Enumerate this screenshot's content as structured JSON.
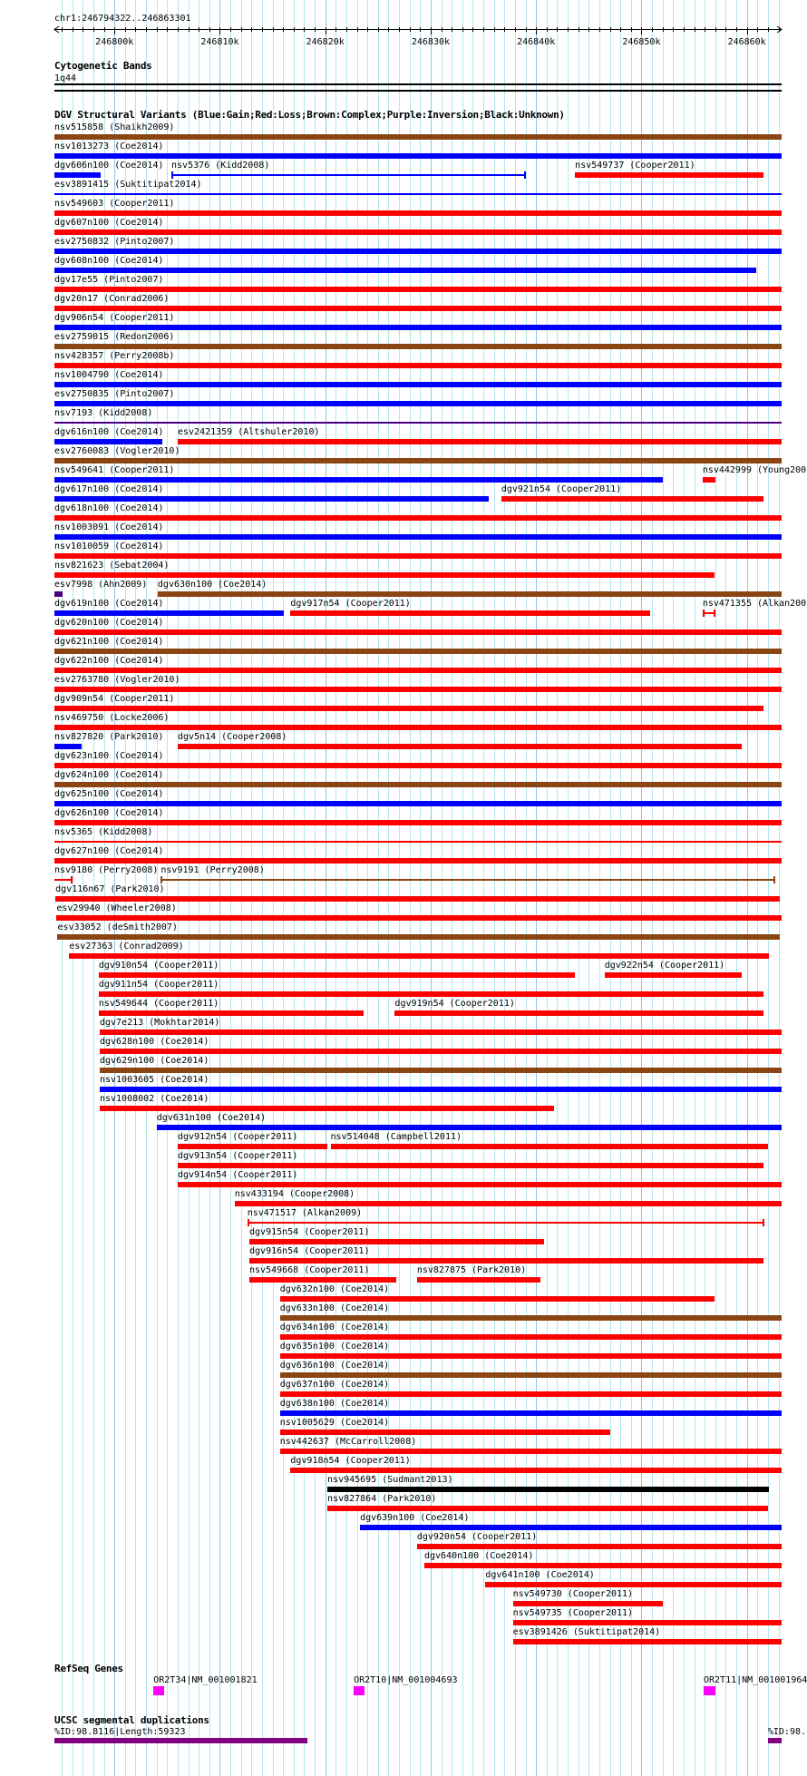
{
  "location": "chr1:246794322..246863301",
  "view": {
    "start_kb": 246794.3,
    "end_kb": 246863.3
  },
  "ruler": {
    "ticks": [
      {
        "kb": 246800,
        "label": "246800k"
      },
      {
        "kb": 246810,
        "label": "246810k"
      },
      {
        "kb": 246820,
        "label": "246820k"
      },
      {
        "kb": 246830,
        "label": "246830k"
      },
      {
        "kb": 246840,
        "label": "246840k"
      },
      {
        "kb": 246850,
        "label": "246850k"
      },
      {
        "kb": 246860,
        "label": "246860k"
      }
    ]
  },
  "cytoband": {
    "title": "Cytogenetic Bands",
    "band": "1q44"
  },
  "colors": {
    "G": "#0000ff",
    "L": "#ff0000",
    "C": "#8b4513",
    "I": "#4b0082",
    "U": "#000000",
    "gene": "#ff00ff",
    "segdup": "#800080",
    "grid_minor": "#b4e6f0",
    "grid_major": "#8cc6e8"
  },
  "dgv": {
    "title": "DGV Structural Variants (Blue:Gain;Red:Loss;Brown:Complex;Purple:Inversion;Black:Unknown)",
    "rows": [
      [
        {
          "l": "nsv515858 (Shaikh2009)",
          "t": "C",
          "s": 246794.3,
          "e": 246863.3
        }
      ],
      [
        {
          "l": "nsv1013273 (Coe2014)",
          "t": "G",
          "s": 246794.3,
          "e": 246863.3
        }
      ],
      [
        {
          "l": "dgv606n100 (Coe2014)",
          "t": "G",
          "s": 246794.3,
          "e": 246798.7
        },
        {
          "l": "nsv5376 (Kidd2008)",
          "t": "G",
          "s": 246805.4,
          "e": 246839.0,
          "line": true
        },
        {
          "l": "nsv549737 (Cooper2011)",
          "t": "L",
          "s": 246843.7,
          "e": 246861.6
        }
      ],
      [
        {
          "l": "esv3891415 (Suktitipat2014)",
          "t": "G",
          "s": 246794.3,
          "e": 246863.3,
          "line": true
        }
      ],
      [
        {
          "l": "nsv549603 (Cooper2011)",
          "t": "L",
          "s": 246794.3,
          "e": 246863.3
        }
      ],
      [
        {
          "l": "dgv607n100 (Coe2014)",
          "t": "L",
          "s": 246794.3,
          "e": 246863.3
        }
      ],
      [
        {
          "l": "esv2750832 (Pinto2007)",
          "t": "G",
          "s": 246794.3,
          "e": 246863.3
        }
      ],
      [
        {
          "l": "dgv608n100 (Coe2014)",
          "t": "G",
          "s": 246794.3,
          "e": 246860.9
        }
      ],
      [
        {
          "l": "dgv17e55 (Pinto2007)",
          "t": "L",
          "s": 246794.3,
          "e": 246863.3
        }
      ],
      [
        {
          "l": "dgv20n17 (Conrad2006)",
          "t": "L",
          "s": 246794.3,
          "e": 246863.3
        }
      ],
      [
        {
          "l": "dgv906n54 (Cooper2011)",
          "t": "G",
          "s": 246794.3,
          "e": 246863.3
        }
      ],
      [
        {
          "l": "esv2759015 (Redon2006)",
          "t": "C",
          "s": 246794.3,
          "e": 246863.3
        }
      ],
      [
        {
          "l": "nsv428357 (Perry2008b)",
          "t": "L",
          "s": 246794.3,
          "e": 246863.3
        }
      ],
      [
        {
          "l": "nsv1004790 (Coe2014)",
          "t": "G",
          "s": 246794.3,
          "e": 246863.3
        }
      ],
      [
        {
          "l": "esv2750835 (Pinto2007)",
          "t": "G",
          "s": 246794.3,
          "e": 246863.3
        }
      ],
      [
        {
          "l": "nsv7193 (Kidd2008)",
          "t": "I",
          "s": 246794.3,
          "e": 246863.3,
          "line": true
        }
      ],
      [
        {
          "l": "dgv616n100 (Coe2014)",
          "t": "G",
          "s": 246794.3,
          "e": 246804.5
        },
        {
          "l": "esv2421359 (Altshuler2010)",
          "t": "L",
          "s": 246806.0,
          "e": 246863.3
        }
      ],
      [
        {
          "l": "esv2760083 (Vogler2010)",
          "t": "C",
          "s": 246794.3,
          "e": 246863.3
        }
      ],
      [
        {
          "l": "nsv549641 (Cooper2011)",
          "t": "G",
          "s": 246794.3,
          "e": 246852.0
        },
        {
          "l": "nsv442999 (Young200",
          "t": "L",
          "s": 246855.8,
          "e": 246857.0
        }
      ],
      [
        {
          "l": "dgv617n100 (Coe2014)",
          "t": "G",
          "s": 246794.3,
          "e": 246835.5
        },
        {
          "l": "dgv921n54 (Cooper2011)",
          "t": "L",
          "s": 246836.7,
          "e": 246861.6
        }
      ],
      [
        {
          "l": "dgv618n100 (Coe2014)",
          "t": "L",
          "s": 246794.3,
          "e": 246863.3
        }
      ],
      [
        {
          "l": "nsv1003091 (Coe2014)",
          "t": "G",
          "s": 246794.3,
          "e": 246863.3
        }
      ],
      [
        {
          "l": "nsv1010059 (Coe2014)",
          "t": "L",
          "s": 246794.3,
          "e": 246863.3
        }
      ],
      [
        {
          "l": "nsv821623 (Sebat2004)",
          "t": "L",
          "s": 246794.3,
          "e": 246856.9
        }
      ],
      [
        {
          "l": "esv7998 (Ahn2009)",
          "t": "I",
          "s": 246794.3,
          "e": 246795.1
        },
        {
          "l": "dgv630n100 (Coe2014)",
          "t": "C",
          "s": 246804.1,
          "e": 246863.3
        }
      ],
      [
        {
          "l": "dgv619n100 (Coe2014)",
          "t": "G",
          "s": 246794.3,
          "e": 246816.1
        },
        {
          "l": "dgv917n54 (Cooper2011)",
          "t": "L",
          "s": 246816.7,
          "e": 246850.8
        },
        {
          "l": "nsv471355 (Alkan200",
          "t": "L",
          "s": 246855.8,
          "e": 246857.0,
          "line": true
        }
      ],
      [
        {
          "l": "dgv620n100 (Coe2014)",
          "t": "L",
          "s": 246794.3,
          "e": 246863.3
        }
      ],
      [
        {
          "l": "dgv621n100 (Coe2014)",
          "t": "C",
          "s": 246794.3,
          "e": 246863.3
        }
      ],
      [
        {
          "l": "dgv622n100 (Coe2014)",
          "t": "L",
          "s": 246794.3,
          "e": 246863.3
        }
      ],
      [
        {
          "l": "esv2763780 (Vogler2010)",
          "t": "L",
          "s": 246794.3,
          "e": 246863.3
        }
      ],
      [
        {
          "l": "dgv909n54 (Cooper2011)",
          "t": "L",
          "s": 246794.3,
          "e": 246861.6
        }
      ],
      [
        {
          "l": "nsv469750 (Locke2006)",
          "t": "L",
          "s": 246794.3,
          "e": 246863.3
        }
      ],
      [
        {
          "l": "nsv827820 (Park2010)",
          "t": "G",
          "s": 246794.3,
          "e": 246796.9
        },
        {
          "l": "dgv5n14 (Cooper2008)",
          "t": "L",
          "s": 246806.0,
          "e": 246859.5
        }
      ],
      [
        {
          "l": "dgv623n100 (Coe2014)",
          "t": "L",
          "s": 246794.3,
          "e": 246863.3
        }
      ],
      [
        {
          "l": "dgv624n100 (Coe2014)",
          "t": "C",
          "s": 246794.3,
          "e": 246863.3
        }
      ],
      [
        {
          "l": "dgv625n100 (Coe2014)",
          "t": "G",
          "s": 246794.3,
          "e": 246863.3
        }
      ],
      [
        {
          "l": "dgv626n100 (Coe2014)",
          "t": "L",
          "s": 246794.3,
          "e": 246863.3
        }
      ],
      [
        {
          "l": "nsv5365 (Kidd2008)",
          "t": "L",
          "s": 246794.3,
          "e": 246863.3,
          "line": true
        }
      ],
      [
        {
          "l": "dgv627n100 (Coe2014)",
          "t": "L",
          "s": 246794.3,
          "e": 246863.3
        }
      ],
      [
        {
          "l": "nsv9180 (Perry2008)",
          "t": "L",
          "s": 246794.3,
          "e": 246796.0,
          "line": true
        },
        {
          "l": "nsv9191 (Perry2008)",
          "t": "C",
          "s": 246804.4,
          "e": 246862.7,
          "line": true
        }
      ],
      [
        {
          "l": "dgv116n67 (Park2010)",
          "t": "L",
          "s": 246794.4,
          "e": 246863.1
        }
      ],
      [
        {
          "l": "esv29940 (Wheeler2008)",
          "t": "L",
          "s": 246794.5,
          "e": 246863.3
        }
      ],
      [
        {
          "l": "esv33052 (deSmith2007)",
          "t": "C",
          "s": 246794.6,
          "e": 246863.1
        }
      ],
      [
        {
          "l": "esv27363 (Conrad2009)",
          "t": "L",
          "s": 246795.7,
          "e": 246862.1
        }
      ],
      [
        {
          "l": "dgv910n54 (Cooper2011)",
          "t": "L",
          "s": 246798.5,
          "e": 246843.7
        },
        {
          "l": "dgv922n54 (Cooper2011)",
          "t": "L",
          "s": 246846.5,
          "e": 246859.5
        }
      ],
      [
        {
          "l": "dgv911n54 (Cooper2011)",
          "t": "L",
          "s": 246798.5,
          "e": 246861.6
        }
      ],
      [
        {
          "l": "nsv549644 (Cooper2011)",
          "t": "L",
          "s": 246798.5,
          "e": 246823.6
        },
        {
          "l": "dgv919n54 (Cooper2011)",
          "t": "L",
          "s": 246826.6,
          "e": 246861.6
        }
      ],
      [
        {
          "l": "dgv7e213 (Mokhtar2014)",
          "t": "L",
          "s": 246798.6,
          "e": 246863.3
        }
      ],
      [
        {
          "l": "dgv628n100 (Coe2014)",
          "t": "L",
          "s": 246798.6,
          "e": 246863.3
        }
      ],
      [
        {
          "l": "dgv629n100 (Coe2014)",
          "t": "C",
          "s": 246798.6,
          "e": 246863.3
        }
      ],
      [
        {
          "l": "nsv1003605 (Coe2014)",
          "t": "G",
          "s": 246798.6,
          "e": 246863.3
        }
      ],
      [
        {
          "l": "nsv1008002 (Coe2014)",
          "t": "L",
          "s": 246798.6,
          "e": 246841.7
        }
      ],
      [
        {
          "l": "dgv631n100 (Coe2014)",
          "t": "G",
          "s": 246804.0,
          "e": 246863.3
        }
      ],
      [
        {
          "l": "dgv912n54 (Cooper2011)",
          "t": "L",
          "s": 246806.0,
          "e": 246820.2
        },
        {
          "l": "nsv514048 (Campbell2011)",
          "t": "L",
          "s": 246820.5,
          "e": 246862.0
        }
      ],
      [
        {
          "l": "dgv913n54 (Cooper2011)",
          "t": "L",
          "s": 246806.0,
          "e": 246861.6
        }
      ],
      [
        {
          "l": "dgv914n54 (Cooper2011)",
          "t": "L",
          "s": 246806.0,
          "e": 246863.3
        }
      ],
      [
        {
          "l": "nsv433194 (Cooper2008)",
          "t": "L",
          "s": 246811.4,
          "e": 246863.3
        }
      ],
      [
        {
          "l": "nsv471517 (Alkan2009)",
          "t": "L",
          "s": 246812.6,
          "e": 246861.7,
          "line": true
        }
      ],
      [
        {
          "l": "dgv915n54 (Cooper2011)",
          "t": "L",
          "s": 246812.8,
          "e": 246840.8
        }
      ],
      [
        {
          "l": "dgv916n54 (Cooper2011)",
          "t": "L",
          "s": 246812.8,
          "e": 246861.6
        }
      ],
      [
        {
          "l": "nsv549668 (Cooper2011)",
          "t": "L",
          "s": 246812.8,
          "e": 246826.7
        },
        {
          "l": "nsv827875 (Park2010)",
          "t": "L",
          "s": 246828.7,
          "e": 246840.4
        }
      ],
      [
        {
          "l": "dgv632n100 (Coe2014)",
          "t": "L",
          "s": 246815.7,
          "e": 246856.9
        }
      ],
      [
        {
          "l": "dgv633n100 (Coe2014)",
          "t": "C",
          "s": 246815.7,
          "e": 246863.3
        }
      ],
      [
        {
          "l": "dgv634n100 (Coe2014)",
          "t": "L",
          "s": 246815.7,
          "e": 246863.3
        }
      ],
      [
        {
          "l": "dgv635n100 (Coe2014)",
          "t": "L",
          "s": 246815.7,
          "e": 246863.3
        }
      ],
      [
        {
          "l": "dgv636n100 (Coe2014)",
          "t": "C",
          "s": 246815.7,
          "e": 246863.3
        }
      ],
      [
        {
          "l": "dgv637n100 (Coe2014)",
          "t": "L",
          "s": 246815.7,
          "e": 246863.3
        }
      ],
      [
        {
          "l": "dgv638n100 (Coe2014)",
          "t": "G",
          "s": 246815.7,
          "e": 246863.3
        }
      ],
      [
        {
          "l": "nsv1005629 (Coe2014)",
          "t": "L",
          "s": 246815.7,
          "e": 246847.0
        }
      ],
      [
        {
          "l": "nsv442637 (McCarroll2008)",
          "t": "L",
          "s": 246815.7,
          "e": 246863.3
        }
      ],
      [
        {
          "l": "dgv918n54 (Cooper2011)",
          "t": "L",
          "s": 246816.7,
          "e": 246863.3
        }
      ],
      [
        {
          "l": "nsv945695 (Sudmant2013)",
          "t": "U",
          "s": 246820.2,
          "e": 246862.1
        }
      ],
      [
        {
          "l": "nsv827864 (Park2010)",
          "t": "L",
          "s": 246820.2,
          "e": 246862.0
        }
      ],
      [
        {
          "l": "dgv639n100 (Coe2014)",
          "t": "G",
          "s": 246823.3,
          "e": 246863.3
        }
      ],
      [
        {
          "l": "dgv920n54 (Cooper2011)",
          "t": "L",
          "s": 246828.7,
          "e": 246863.3
        }
      ],
      [
        {
          "l": "dgv640n100 (Coe2014)",
          "t": "L",
          "s": 246829.4,
          "e": 246863.3
        }
      ],
      [
        {
          "l": "dgv641n100 (Coe2014)",
          "t": "L",
          "s": 246835.2,
          "e": 246863.3
        }
      ],
      [
        {
          "l": "nsv549730 (Cooper2011)",
          "t": "L",
          "s": 246837.8,
          "e": 246852.0
        }
      ],
      [
        {
          "l": "nsv549735 (Cooper2011)",
          "t": "L",
          "s": 246837.8,
          "e": 246863.3
        }
      ],
      [
        {
          "l": "esv3891426 (Suktitipat2014)",
          "t": "L",
          "s": 246837.8,
          "e": 246863.3
        }
      ]
    ]
  },
  "refseq": {
    "title": "RefSeq Genes",
    "genes": [
      {
        "l": "OR2T34|NM_001001821",
        "s": 246803.7,
        "e": 246804.7
      },
      {
        "l": "OR2T10|NM_001004693",
        "s": 246822.7,
        "e": 246823.7
      },
      {
        "l": "OR2T11|NM_001001964",
        "s": 246855.9,
        "e": 246857.0
      }
    ]
  },
  "segdup": {
    "title": "UCSC segmental duplications",
    "items": [
      {
        "l": "%ID:98.8116|Length:59323",
        "s": 246794.3,
        "e": 246818.3
      },
      {
        "l": "%ID:98.",
        "s": 246862.0,
        "e": 246863.3
      }
    ]
  }
}
